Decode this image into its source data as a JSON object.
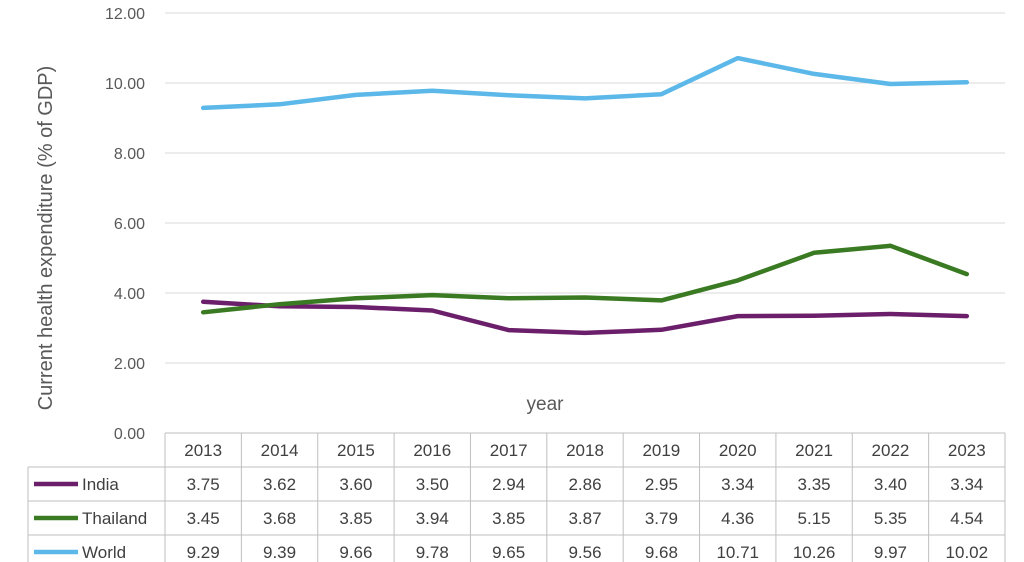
{
  "chart_data": {
    "type": "line",
    "title": "",
    "xlabel": "year",
    "ylabel": "Current health expenditure (% of GDP)",
    "ylim": [
      0,
      12
    ],
    "yticks": [
      "0.00",
      "2.00",
      "4.00",
      "6.00",
      "8.00",
      "10.00",
      "12.00"
    ],
    "grid": true,
    "legend": "data-table",
    "categories": [
      "2013",
      "2014",
      "2015",
      "2016",
      "2017",
      "2018",
      "2019",
      "2020",
      "2021",
      "2022",
      "2023"
    ],
    "series": [
      {
        "name": "India",
        "color": "#6B1F6B",
        "values": [
          3.75,
          3.62,
          3.6,
          3.5,
          2.94,
          2.86,
          2.95,
          3.34,
          3.35,
          3.4,
          3.34
        ],
        "labels": [
          "3.75",
          "3.62",
          "3.60",
          "3.50",
          "2.94",
          "2.86",
          "2.95",
          "3.34",
          "3.35",
          "3.40",
          "3.34"
        ]
      },
      {
        "name": "Thailand",
        "color": "#3A7A22",
        "values": [
          3.45,
          3.68,
          3.85,
          3.94,
          3.85,
          3.87,
          3.79,
          4.36,
          5.15,
          5.35,
          4.54
        ],
        "labels": [
          "3.45",
          "3.68",
          "3.85",
          "3.94",
          "3.85",
          "3.87",
          "3.79",
          "4.36",
          "5.15",
          "5.35",
          "4.54"
        ]
      },
      {
        "name": "World",
        "color": "#5BB8E8",
        "values": [
          9.29,
          9.39,
          9.66,
          9.78,
          9.65,
          9.56,
          9.68,
          10.71,
          10.26,
          9.97,
          10.02
        ],
        "labels": [
          "9.29",
          "9.39",
          "9.66",
          "9.78",
          "9.65",
          "9.56",
          "9.68",
          "10.71",
          "10.26",
          "9.97",
          "10.02"
        ]
      }
    ]
  }
}
